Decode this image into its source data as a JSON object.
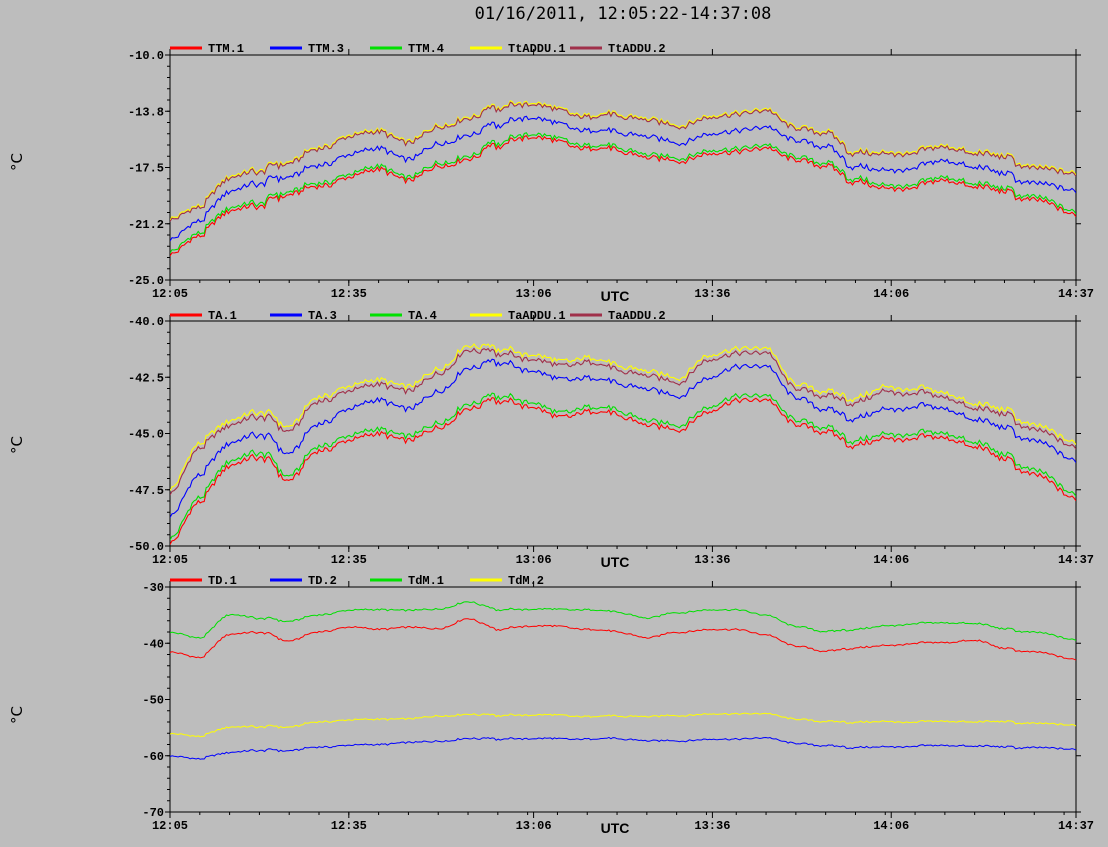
{
  "page": {
    "title": "01/16/2011, 12:05:22-14:37:08",
    "background": "#bdbdbd"
  },
  "colors": {
    "TTM.1": "#ff0000",
    "TTM.3": "#0000ff",
    "TTM.4": "#00e000",
    "TtADDU.1": "#ffff00",
    "TtADDU.2": "#a0304a"
  },
  "chart_data": [
    {
      "type": "line",
      "ylabel": "°C",
      "xlabel": "UTC",
      "ylim": [
        -25.0,
        -10.0
      ],
      "yticks": [
        "-10.0",
        "-13.8",
        "-17.5",
        "-21.2",
        "-25.0"
      ],
      "xlim": [
        "12:05",
        "14:37"
      ],
      "xticks": [
        "12:05",
        "12:35",
        "13:06",
        "13:36",
        "14:06",
        "14:37"
      ],
      "x": [
        "12:05",
        "12:10",
        "12:15",
        "12:20",
        "12:25",
        "12:30",
        "12:35",
        "12:40",
        "12:45",
        "12:50",
        "12:55",
        "13:00",
        "13:05",
        "13:10",
        "13:15",
        "13:20",
        "13:25",
        "13:30",
        "13:35",
        "13:40",
        "13:45",
        "13:50",
        "13:55",
        "14:00",
        "14:05",
        "14:10",
        "14:15",
        "14:20",
        "14:25",
        "14:30",
        "14:37"
      ],
      "legend_position": "top-left",
      "series": [
        {
          "name": "TTM.1",
          "color": "#ff0000",
          "values": [
            -23.2,
            -22.0,
            -20.5,
            -20.0,
            -19.2,
            -18.8,
            -18.0,
            -17.6,
            -18.2,
            -17.5,
            -16.8,
            -16.0,
            -15.5,
            -15.8,
            -16.2,
            -16.4,
            -16.8,
            -17.0,
            -16.5,
            -16.4,
            -16.2,
            -17.0,
            -17.5,
            -18.4,
            -19.0,
            -18.8,
            -18.5,
            -18.8,
            -19.2,
            -19.6,
            -20.8
          ]
        },
        {
          "name": "TTM.3",
          "color": "#0000ff",
          "values": [
            -22.2,
            -21.0,
            -19.2,
            -18.5,
            -18.0,
            -17.4,
            -16.5,
            -16.2,
            -16.8,
            -16.0,
            -15.2,
            -14.6,
            -14.2,
            -14.6,
            -15.0,
            -15.2,
            -15.4,
            -15.8,
            -15.2,
            -15.0,
            -14.8,
            -15.7,
            -16.2,
            -17.4,
            -17.8,
            -17.5,
            -17.2,
            -17.5,
            -18.0,
            -18.5,
            -19.2
          ]
        },
        {
          "name": "TTM.4",
          "color": "#00e000",
          "values": [
            -23.0,
            -21.8,
            -20.3,
            -19.8,
            -19.0,
            -18.6,
            -17.8,
            -17.4,
            -18.0,
            -17.3,
            -16.6,
            -15.8,
            -15.3,
            -15.6,
            -16.0,
            -16.2,
            -16.6,
            -16.8,
            -16.3,
            -16.2,
            -16.0,
            -16.8,
            -17.3,
            -18.2,
            -18.8,
            -18.6,
            -18.3,
            -18.6,
            -19.0,
            -19.4,
            -20.6
          ]
        },
        {
          "name": "TtADDU.1",
          "color": "#ffff00",
          "values": [
            -20.8,
            -20.0,
            -18.2,
            -17.6,
            -17.0,
            -16.2,
            -15.2,
            -15.0,
            -15.6,
            -14.8,
            -14.0,
            -13.4,
            -13.2,
            -13.6,
            -14.0,
            -14.0,
            -14.2,
            -14.6,
            -14.0,
            -13.8,
            -13.6,
            -14.8,
            -15.2,
            -16.4,
            -16.6,
            -16.4,
            -16.2,
            -16.5,
            -16.8,
            -17.4,
            -18.0
          ]
        },
        {
          "name": "TtADDU.2",
          "color": "#a0304a",
          "values": [
            -20.9,
            -20.1,
            -18.3,
            -17.7,
            -17.1,
            -16.3,
            -15.3,
            -15.1,
            -15.7,
            -14.9,
            -14.1,
            -13.5,
            -13.3,
            -13.7,
            -14.1,
            -14.1,
            -14.3,
            -14.7,
            -14.1,
            -13.9,
            -13.7,
            -14.9,
            -15.3,
            -16.5,
            -16.7,
            -16.5,
            -16.3,
            -16.6,
            -16.9,
            -17.5,
            -18.1
          ]
        }
      ]
    },
    {
      "type": "line",
      "ylabel": "°C",
      "xlabel": "UTC",
      "ylim": [
        -50.0,
        -40.0
      ],
      "yticks": [
        "-40.0",
        "-42.5",
        "-45.0",
        "-47.5",
        "-50.0"
      ],
      "xlim": [
        "12:05",
        "14:37"
      ],
      "xticks": [
        "12:05",
        "12:35",
        "13:06",
        "13:36",
        "14:06",
        "14:37"
      ],
      "x": [
        "12:05",
        "12:10",
        "12:15",
        "12:20",
        "12:25",
        "12:30",
        "12:35",
        "12:40",
        "12:45",
        "12:50",
        "12:55",
        "13:00",
        "13:05",
        "13:10",
        "13:15",
        "13:20",
        "13:25",
        "13:30",
        "13:35",
        "13:40",
        "13:45",
        "13:50",
        "13:55",
        "14:00",
        "14:05",
        "14:10",
        "14:15",
        "14:20",
        "14:25",
        "14:30",
        "14:37"
      ],
      "legend_position": "top-left",
      "series": [
        {
          "name": "TA.1",
          "color": "#ff0000",
          "values": [
            -49.8,
            -48.0,
            -46.5,
            -46.0,
            -47.0,
            -45.8,
            -45.2,
            -45.0,
            -45.2,
            -44.8,
            -43.8,
            -43.5,
            -43.8,
            -44.3,
            -44.0,
            -44.2,
            -44.6,
            -44.8,
            -44.0,
            -43.5,
            -43.5,
            -44.6,
            -45.0,
            -45.5,
            -45.3,
            -45.2,
            -45.3,
            -45.6,
            -46.2,
            -46.8,
            -48.0
          ]
        },
        {
          "name": "TA.3",
          "color": "#0000ff",
          "values": [
            -48.6,
            -46.8,
            -45.5,
            -45.0,
            -45.8,
            -44.6,
            -43.8,
            -43.5,
            -43.8,
            -43.2,
            -42.0,
            -41.8,
            -42.2,
            -42.6,
            -42.5,
            -42.8,
            -43.0,
            -43.3,
            -42.5,
            -42.0,
            -42.0,
            -43.4,
            -44.0,
            -44.3,
            -44.0,
            -43.8,
            -44.0,
            -44.4,
            -44.8,
            -45.3,
            -46.3
          ]
        },
        {
          "name": "TA.4",
          "color": "#00e000",
          "values": [
            -49.6,
            -47.8,
            -46.3,
            -45.8,
            -46.8,
            -45.6,
            -45.0,
            -44.8,
            -45.0,
            -44.6,
            -43.6,
            -43.3,
            -43.6,
            -44.1,
            -43.8,
            -44.0,
            -44.4,
            -44.6,
            -43.8,
            -43.3,
            -43.3,
            -44.4,
            -44.8,
            -45.3,
            -45.1,
            -45.0,
            -45.1,
            -45.4,
            -46.0,
            -46.6,
            -47.8
          ]
        },
        {
          "name": "TaADDU.1",
          "color": "#ffff00",
          "values": [
            -47.4,
            -45.4,
            -44.5,
            -44.0,
            -44.6,
            -43.4,
            -42.8,
            -42.6,
            -42.8,
            -42.2,
            -41.0,
            -41.2,
            -41.5,
            -41.8,
            -41.6,
            -42.0,
            -42.2,
            -42.5,
            -41.5,
            -41.2,
            -41.2,
            -42.8,
            -43.2,
            -43.4,
            -43.0,
            -43.0,
            -43.3,
            -43.7,
            -44.0,
            -44.6,
            -45.5
          ]
        },
        {
          "name": "TaADDU.2",
          "color": "#a0304a",
          "values": [
            -47.6,
            -45.6,
            -44.7,
            -44.2,
            -44.8,
            -43.6,
            -43.0,
            -42.8,
            -43.0,
            -42.4,
            -41.2,
            -41.4,
            -41.7,
            -42.0,
            -41.8,
            -42.2,
            -42.4,
            -42.7,
            -41.7,
            -41.4,
            -41.4,
            -43.0,
            -43.4,
            -43.6,
            -43.2,
            -43.2,
            -43.5,
            -43.9,
            -44.2,
            -44.8,
            -45.7
          ]
        }
      ]
    },
    {
      "type": "line",
      "ylabel": "°C",
      "xlabel": "UTC",
      "ylim": [
        -70,
        -30
      ],
      "yticks": [
        "-30",
        "-40",
        "-50",
        "-60",
        "-70"
      ],
      "xlim": [
        "12:05",
        "14:37"
      ],
      "xticks": [
        "12:05",
        "12:35",
        "13:06",
        "13:36",
        "14:06",
        "14:37"
      ],
      "x": [
        "12:05",
        "12:10",
        "12:15",
        "12:20",
        "12:25",
        "12:30",
        "12:35",
        "12:40",
        "12:45",
        "12:50",
        "12:55",
        "13:00",
        "13:05",
        "13:10",
        "13:15",
        "13:20",
        "13:25",
        "13:30",
        "13:35",
        "13:40",
        "13:45",
        "13:50",
        "13:55",
        "14:00",
        "14:05",
        "14:10",
        "14:15",
        "14:20",
        "14:25",
        "14:30",
        "14:37"
      ],
      "legend_position": "top-left",
      "series": [
        {
          "name": "TD.1",
          "color": "#ff0000",
          "values": [
            -41.5,
            -42.5,
            -38.5,
            -38.0,
            -39.5,
            -38.0,
            -37.0,
            -37.5,
            -37.0,
            -37.5,
            -35.5,
            -37.5,
            -37.0,
            -37.0,
            -37.5,
            -38.0,
            -39.0,
            -38.0,
            -37.5,
            -37.5,
            -38.5,
            -40.5,
            -41.5,
            -40.8,
            -40.5,
            -40.0,
            -40.0,
            -39.5,
            -41.0,
            -41.5,
            -43.0
          ]
        },
        {
          "name": "TD.2",
          "color": "#0000ff",
          "values": [
            -60.0,
            -60.5,
            -59.5,
            -59.0,
            -59.0,
            -58.5,
            -58.0,
            -58.0,
            -57.5,
            -57.5,
            -56.8,
            -57.0,
            -57.0,
            -57.0,
            -57.0,
            -57.0,
            -57.3,
            -57.3,
            -57.0,
            -57.0,
            -56.8,
            -57.8,
            -58.3,
            -58.5,
            -58.5,
            -58.3,
            -58.3,
            -58.3,
            -58.5,
            -58.5,
            -59.0
          ]
        },
        {
          "name": "TdM.1",
          "color": "#00e000",
          "values": [
            -38.0,
            -39.0,
            -35.0,
            -35.5,
            -36.0,
            -35.0,
            -34.0,
            -34.0,
            -34.0,
            -34.0,
            -32.5,
            -34.0,
            -34.0,
            -34.0,
            -34.0,
            -34.5,
            -35.5,
            -34.5,
            -34.0,
            -34.0,
            -35.0,
            -37.0,
            -38.0,
            -37.5,
            -37.0,
            -36.5,
            -36.5,
            -36.5,
            -37.5,
            -38.0,
            -39.5
          ]
        },
        {
          "name": "TdM.2",
          "color": "#ffff00",
          "values": [
            -56.0,
            -56.5,
            -55.0,
            -54.8,
            -54.8,
            -54.0,
            -53.5,
            -53.5,
            -53.3,
            -53.0,
            -52.5,
            -52.8,
            -52.8,
            -52.8,
            -53.0,
            -53.0,
            -53.0,
            -52.8,
            -52.5,
            -52.5,
            -52.5,
            -53.5,
            -54.0,
            -54.0,
            -54.0,
            -54.0,
            -54.0,
            -54.0,
            -54.0,
            -54.2,
            -54.7
          ]
        }
      ]
    }
  ]
}
